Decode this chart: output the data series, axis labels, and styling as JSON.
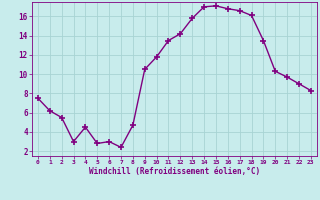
{
  "hours": [
    0,
    1,
    2,
    3,
    4,
    5,
    6,
    7,
    8,
    9,
    10,
    11,
    12,
    13,
    14,
    15,
    16,
    17,
    18,
    19,
    20,
    21,
    22,
    23
  ],
  "values": [
    7.5,
    6.2,
    5.5,
    3.0,
    4.5,
    2.8,
    3.0,
    2.4,
    4.7,
    10.5,
    11.8,
    13.5,
    14.2,
    15.8,
    17.0,
    17.1,
    16.8,
    16.6,
    16.1,
    13.5,
    10.3,
    9.7,
    9.0,
    8.3
  ],
  "line_color": "#800080",
  "bg_color": "#c8ecec",
  "grid_color": "#a8d4d4",
  "xlabel": "Windchill (Refroidissement éolien,°C)",
  "xlabel_color": "#800080",
  "tick_color": "#800080",
  "ylim": [
    1.5,
    17.5
  ],
  "yticks": [
    2,
    4,
    6,
    8,
    10,
    12,
    14,
    16
  ],
  "xlim": [
    -0.5,
    23.5
  ],
  "figsize": [
    3.2,
    2.0
  ],
  "dpi": 100,
  "marker": "+",
  "markersize": 4,
  "linewidth": 1.0
}
